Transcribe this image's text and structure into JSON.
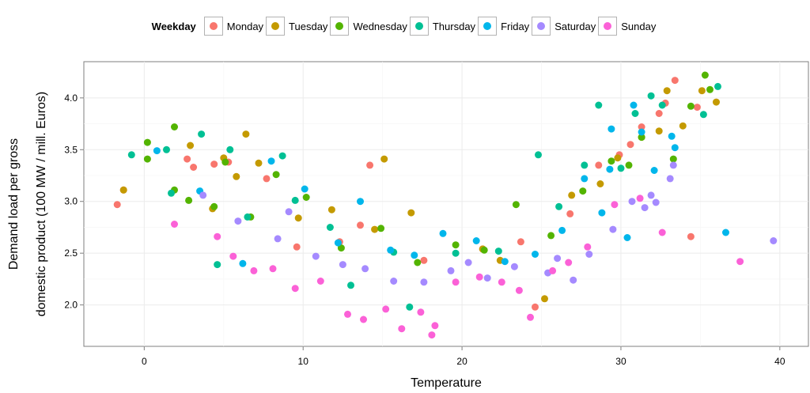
{
  "chart_data": {
    "type": "scatter",
    "xlabel": "Temperature",
    "ylabel_lines": [
      "Demand load per gross",
      "domestic product (100 MW / mill. Euros)"
    ],
    "xlim": [
      -3.8,
      41.8
    ],
    "ylim": [
      1.6,
      4.35
    ],
    "xticks": [
      0,
      10,
      20,
      30,
      40
    ],
    "yticks": [
      2.0,
      2.5,
      3.0,
      3.5,
      4.0
    ],
    "ytick_labels": [
      "2.0",
      "2.5",
      "3.0",
      "3.5",
      "4.0"
    ],
    "grid": true,
    "legend": {
      "title": "Weekday",
      "position": "top"
    },
    "series": [
      {
        "name": "Monday",
        "color": "#F8766D",
        "points": [
          [
            -1.7,
            2.97
          ],
          [
            -1.3,
            3.11
          ],
          [
            2.7,
            3.41
          ],
          [
            3.1,
            3.33
          ],
          [
            4.4,
            3.36
          ],
          [
            5.3,
            3.38
          ],
          [
            7.7,
            3.22
          ],
          [
            9.6,
            2.56
          ],
          [
            12.3,
            2.61
          ],
          [
            13.6,
            2.77
          ],
          [
            14.2,
            3.35
          ],
          [
            17.6,
            2.43
          ],
          [
            21.3,
            2.54
          ],
          [
            23.7,
            2.61
          ],
          [
            24.6,
            1.98
          ],
          [
            26.8,
            2.88
          ],
          [
            28.6,
            3.35
          ],
          [
            29.9,
            3.45
          ],
          [
            30.6,
            3.55
          ],
          [
            31.3,
            3.72
          ],
          [
            32.4,
            3.85
          ],
          [
            32.8,
            3.95
          ],
          [
            33.4,
            4.17
          ],
          [
            34.4,
            2.66
          ],
          [
            34.8,
            3.91
          ]
        ]
      },
      {
        "name": "Tuesday",
        "color": "#C49A00",
        "points": [
          [
            -1.3,
            3.11
          ],
          [
            2.9,
            3.54
          ],
          [
            4.3,
            2.93
          ],
          [
            5.0,
            3.42
          ],
          [
            5.8,
            3.24
          ],
          [
            6.4,
            3.65
          ],
          [
            7.2,
            3.37
          ],
          [
            9.7,
            2.84
          ],
          [
            11.8,
            2.92
          ],
          [
            14.5,
            2.73
          ],
          [
            15.1,
            3.41
          ],
          [
            16.8,
            2.89
          ],
          [
            21.3,
            2.54
          ],
          [
            22.4,
            2.43
          ],
          [
            25.2,
            2.06
          ],
          [
            26.9,
            3.06
          ],
          [
            28.7,
            3.17
          ],
          [
            29.8,
            3.42
          ],
          [
            31.3,
            3.62
          ],
          [
            32.4,
            3.68
          ],
          [
            32.9,
            4.07
          ],
          [
            33.9,
            3.73
          ],
          [
            35.1,
            4.07
          ],
          [
            36.0,
            3.96
          ]
        ]
      },
      {
        "name": "Wednesday",
        "color": "#53B400",
        "points": [
          [
            0.2,
            3.57
          ],
          [
            0.2,
            3.41
          ],
          [
            1.9,
            3.72
          ],
          [
            1.9,
            3.11
          ],
          [
            2.8,
            3.01
          ],
          [
            4.4,
            2.95
          ],
          [
            5.1,
            3.38
          ],
          [
            6.7,
            2.85
          ],
          [
            8.3,
            3.26
          ],
          [
            10.2,
            3.04
          ],
          [
            12.4,
            2.55
          ],
          [
            14.9,
            2.74
          ],
          [
            17.2,
            2.41
          ],
          [
            19.6,
            2.58
          ],
          [
            21.4,
            2.53
          ],
          [
            23.4,
            2.97
          ],
          [
            25.6,
            2.67
          ],
          [
            27.6,
            3.1
          ],
          [
            29.4,
            3.39
          ],
          [
            30.5,
            3.35
          ],
          [
            31.3,
            3.62
          ],
          [
            33.3,
            3.41
          ],
          [
            34.4,
            3.92
          ],
          [
            35.3,
            4.22
          ],
          [
            35.6,
            4.08
          ]
        ]
      },
      {
        "name": "Thursday",
        "color": "#00C094",
        "points": [
          [
            -0.8,
            3.45
          ],
          [
            1.4,
            3.5
          ],
          [
            1.7,
            3.08
          ],
          [
            3.6,
            3.65
          ],
          [
            4.6,
            2.39
          ],
          [
            5.4,
            3.5
          ],
          [
            6.5,
            2.85
          ],
          [
            8.7,
            3.44
          ],
          [
            9.5,
            3.01
          ],
          [
            11.7,
            2.75
          ],
          [
            13.0,
            2.19
          ],
          [
            15.7,
            2.51
          ],
          [
            16.7,
            1.98
          ],
          [
            19.6,
            2.5
          ],
          [
            22.3,
            2.52
          ],
          [
            24.8,
            3.45
          ],
          [
            26.1,
            2.95
          ],
          [
            27.7,
            3.35
          ],
          [
            28.6,
            3.93
          ],
          [
            30.0,
            3.32
          ],
          [
            30.9,
            3.85
          ],
          [
            31.9,
            4.02
          ],
          [
            32.6,
            3.93
          ],
          [
            35.2,
            3.84
          ],
          [
            36.1,
            4.11
          ]
        ]
      },
      {
        "name": "Friday",
        "color": "#00B6EB",
        "points": [
          [
            0.8,
            3.49
          ],
          [
            3.5,
            3.1
          ],
          [
            6.2,
            2.4
          ],
          [
            8.0,
            3.39
          ],
          [
            10.1,
            3.12
          ],
          [
            12.2,
            2.6
          ],
          [
            13.6,
            3.0
          ],
          [
            15.5,
            2.53
          ],
          [
            17.0,
            2.48
          ],
          [
            18.8,
            2.69
          ],
          [
            20.9,
            2.62
          ],
          [
            22.7,
            2.42
          ],
          [
            24.6,
            2.49
          ],
          [
            26.3,
            2.72
          ],
          [
            27.7,
            3.22
          ],
          [
            28.8,
            2.89
          ],
          [
            29.3,
            3.31
          ],
          [
            30.4,
            2.65
          ],
          [
            31.3,
            3.67
          ],
          [
            32.1,
            3.3
          ],
          [
            33.2,
            3.63
          ],
          [
            36.6,
            2.7
          ],
          [
            33.4,
            3.52
          ],
          [
            30.8,
            3.93
          ],
          [
            29.4,
            3.7
          ]
        ]
      },
      {
        "name": "Saturday",
        "color": "#A58AFF",
        "points": [
          [
            3.7,
            3.06
          ],
          [
            5.9,
            2.81
          ],
          [
            8.4,
            2.64
          ],
          [
            10.8,
            2.47
          ],
          [
            12.5,
            2.39
          ],
          [
            13.9,
            2.35
          ],
          [
            15.7,
            2.23
          ],
          [
            17.6,
            2.22
          ],
          [
            19.3,
            2.33
          ],
          [
            21.6,
            2.26
          ],
          [
            23.3,
            2.37
          ],
          [
            25.4,
            2.31
          ],
          [
            27.0,
            2.24
          ],
          [
            28.0,
            2.49
          ],
          [
            29.5,
            2.73
          ],
          [
            30.7,
            3.0
          ],
          [
            31.5,
            2.94
          ],
          [
            32.2,
            2.99
          ],
          [
            33.1,
            3.22
          ],
          [
            33.3,
            3.35
          ],
          [
            39.6,
            2.62
          ],
          [
            31.9,
            3.06
          ],
          [
            26.0,
            2.45
          ],
          [
            20.4,
            2.41
          ],
          [
            9.1,
            2.9
          ]
        ]
      },
      {
        "name": "Sunday",
        "color": "#FB61D7",
        "points": [
          [
            1.9,
            2.78
          ],
          [
            4.6,
            2.66
          ],
          [
            5.6,
            2.47
          ],
          [
            6.9,
            2.33
          ],
          [
            8.1,
            2.35
          ],
          [
            9.5,
            2.16
          ],
          [
            11.1,
            2.23
          ],
          [
            12.8,
            1.91
          ],
          [
            13.8,
            1.86
          ],
          [
            15.2,
            1.96
          ],
          [
            16.2,
            1.77
          ],
          [
            17.4,
            1.93
          ],
          [
            18.1,
            1.71
          ],
          [
            18.3,
            1.8
          ],
          [
            19.6,
            2.22
          ],
          [
            21.1,
            2.27
          ],
          [
            22.5,
            2.22
          ],
          [
            23.6,
            2.14
          ],
          [
            24.3,
            1.88
          ],
          [
            25.7,
            2.33
          ],
          [
            26.7,
            2.41
          ],
          [
            27.9,
            2.56
          ],
          [
            29.6,
            2.97
          ],
          [
            31.2,
            3.03
          ],
          [
            32.6,
            2.7
          ],
          [
            37.5,
            2.42
          ]
        ]
      }
    ]
  }
}
